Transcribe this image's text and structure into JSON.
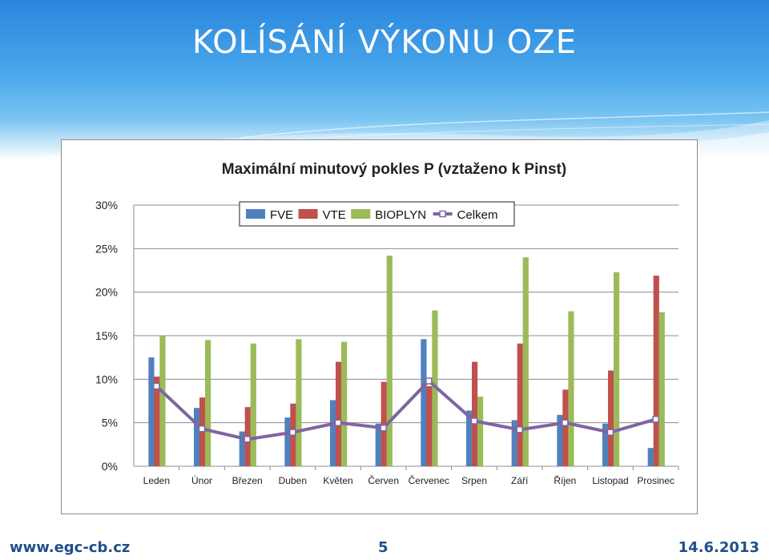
{
  "slide": {
    "title": "KOLÍSÁNÍ VÝKONU OZE",
    "footer_left": "www.egc-cb.cz",
    "footer_center": "5",
    "footer_right": "14.6.2013"
  },
  "colors": {
    "header_blue": "#2b86dc",
    "footer_text": "#1f4f8a",
    "fve": "#4f81bd",
    "vte": "#c0504d",
    "bioplyn": "#9bbb59",
    "celkem": "#8064a2"
  },
  "chart_data": {
    "type": "bar",
    "title": "Maximální minutový pokles P (vztaženo k Pinst)",
    "categories": [
      "Leden",
      "Únor",
      "Březen",
      "Duben",
      "Květen",
      "Červen",
      "Červenec",
      "Srpen",
      "Září",
      "Říjen",
      "Listopad",
      "Prosinec"
    ],
    "ylim": [
      0,
      30
    ],
    "yticks": [
      "0%",
      "5%",
      "10%",
      "15%",
      "20%",
      "25%",
      "30%"
    ],
    "grid": true,
    "legend_position": "top-right",
    "series": [
      {
        "name": "FVE",
        "type": "bar",
        "color": "#4f81bd",
        "values": [
          12.5,
          6.7,
          4.0,
          5.6,
          7.6,
          4.9,
          14.6,
          6.4,
          5.3,
          5.9,
          4.9,
          2.1
        ]
      },
      {
        "name": "VTE",
        "type": "bar",
        "color": "#c0504d",
        "values": [
          10.3,
          7.9,
          6.8,
          7.2,
          12.0,
          9.7,
          9.2,
          12.0,
          14.1,
          8.8,
          11.0,
          21.9
        ]
      },
      {
        "name": "BIOPLYN",
        "type": "bar",
        "color": "#9bbb59",
        "values": [
          15.0,
          14.5,
          14.1,
          14.6,
          14.3,
          24.2,
          17.9,
          8.0,
          24.0,
          17.8,
          22.3,
          17.7
        ]
      },
      {
        "name": "Celkem",
        "type": "line",
        "color": "#8064a2",
        "values": [
          9.2,
          4.3,
          3.1,
          3.9,
          5.0,
          4.4,
          9.8,
          5.2,
          4.2,
          5.0,
          3.9,
          5.4
        ]
      }
    ]
  }
}
